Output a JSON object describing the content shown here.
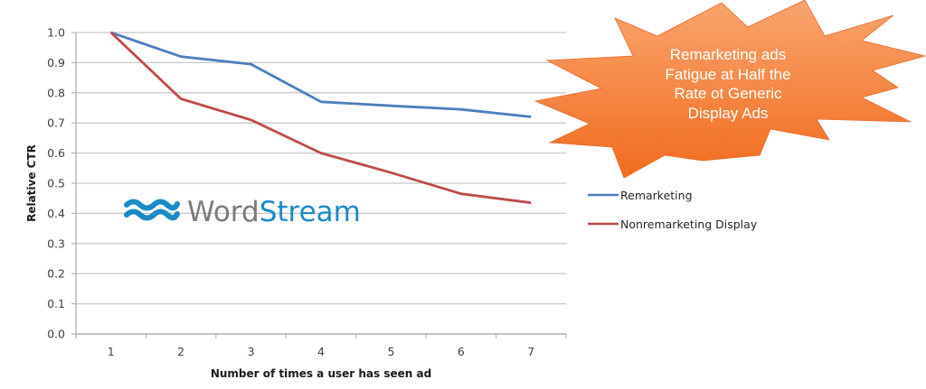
{
  "chart_data": {
    "type": "line",
    "title": "",
    "xlabel": "Number of times a user has seen ad",
    "ylabel": "Relative CTR",
    "x": [
      1,
      2,
      3,
      4,
      5,
      6,
      7
    ],
    "ylim": [
      0.0,
      1.0
    ],
    "yticks": [
      "0.0",
      "0.1",
      "0.2",
      "0.3",
      "0.4",
      "0.5",
      "0.6",
      "0.7",
      "0.8",
      "0.9",
      "1.0"
    ],
    "xticks": [
      "1",
      "2",
      "3",
      "4",
      "5",
      "6",
      "7"
    ],
    "grid": "horizontal",
    "legend_position": "right",
    "series": [
      {
        "name": "Remarketing",
        "color": "#4a7ebf",
        "values": [
          1.0,
          0.92,
          0.895,
          0.77,
          0.757,
          0.745,
          0.72
        ]
      },
      {
        "name": "Nonremarketing Display",
        "color": "#be4b48",
        "values": [
          1.0,
          0.78,
          0.71,
          0.6,
          0.535,
          0.465,
          0.435
        ]
      }
    ],
    "annotations": [
      {
        "type": "starburst-callout",
        "lines": [
          "Remarketing ads",
          "Fatigue at Half the",
          "Rate ot Generic",
          "Display Ads"
        ]
      }
    ]
  },
  "logo": {
    "word": "Word",
    "stream": "Stream",
    "icon": "wave-icon",
    "gray": "#7b7b7b",
    "blue": "#1b8ac6"
  },
  "callout": {
    "lines": [
      "Remarketing ads",
      "Fatigue at Half the",
      "Rate ot Generic",
      "Display Ads"
    ],
    "color_top": "#f9a56e",
    "color_bottom": "#f26b1d"
  },
  "legend": {
    "items": [
      {
        "label": "Remarketing",
        "color": "#4a7ebf"
      },
      {
        "label": "Nonremarketing Display",
        "color": "#be4b48"
      }
    ]
  }
}
